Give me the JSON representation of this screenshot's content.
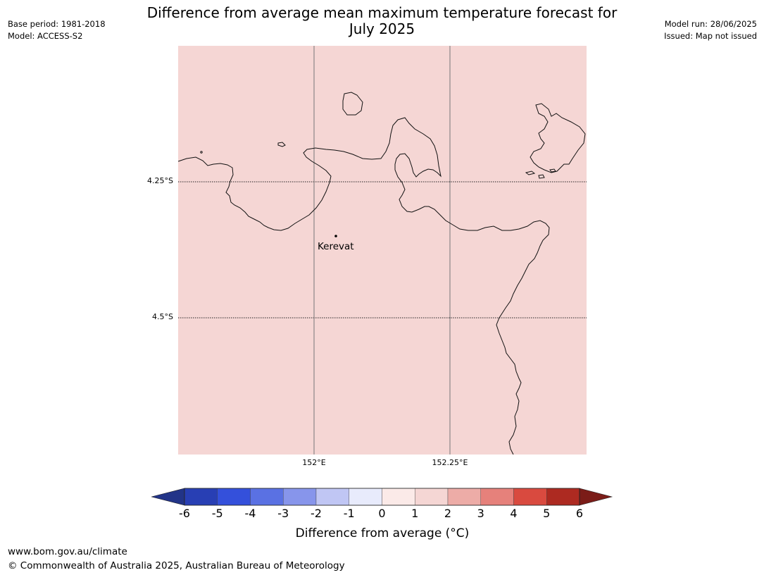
{
  "header": {
    "base_period": "Base period: 1981-2018",
    "model": "Model: ACCESS-S2",
    "model_run": "Model run: 28/06/2025",
    "issued": "Issued: Map not issued",
    "title_line1": "Difference from average mean maximum temperature forecast for",
    "title_line2": "July 2025"
  },
  "map": {
    "fill_color": "#f5d6d4",
    "fill_value_range": "1 to 2",
    "place": "Kerevat",
    "lat_labels": [
      "4.25°S",
      "4.5°S"
    ],
    "lon_labels": [
      "152°E",
      "152.25°E"
    ]
  },
  "colorbar": {
    "label": "Difference from average ($^\\circ$C)",
    "label_display": "Difference from average (°C)",
    "ticks": [
      "-6",
      "-5",
      "-4",
      "-3",
      "-2",
      "-1",
      "0",
      "1",
      "2",
      "3",
      "4",
      "5",
      "6"
    ],
    "colors": [
      "#223488",
      "#283fb4",
      "#3450db",
      "#5a71e3",
      "#8795eb",
      "#c0c6f4",
      "#e8ebfc",
      "#fbeae8",
      "#f5d6d4",
      "#edaca7",
      "#e6817b",
      "#d94a3f",
      "#ad2a21",
      "#7b1c18"
    ]
  },
  "footer": {
    "url": "www.bom.gov.au/climate",
    "copyright": "© Commonwealth of Australia 2025, Australian Bureau of Meteorology"
  }
}
